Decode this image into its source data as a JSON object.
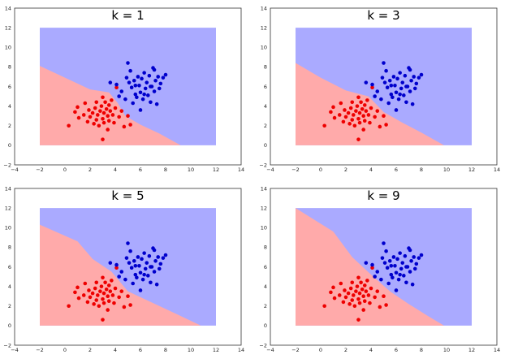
{
  "chart_data": [
    {
      "type": "scatter",
      "title": "k = 1",
      "k": 1,
      "xlim": [
        -4,
        14
      ],
      "ylim": [
        -2,
        14
      ],
      "xticks": [
        -4,
        -2,
        0,
        2,
        4,
        6,
        8,
        10,
        12,
        14
      ],
      "yticks": [
        -2,
        0,
        2,
        4,
        6,
        8,
        10,
        12,
        14
      ],
      "grid": false,
      "background": "decision regions of k-nearest-neighbour classifier (red class / blue class)",
      "boundary": [
        [
          -2,
          8.1
        ],
        [
          0,
          6.9
        ],
        [
          2,
          5.7
        ],
        [
          3.5,
          5.4
        ],
        [
          4.2,
          4.3
        ],
        [
          4.8,
          3.0
        ],
        [
          6,
          2.1
        ],
        [
          7.5,
          1.2
        ],
        [
          9.2,
          0
        ]
      ],
      "series_ref": "shared"
    },
    {
      "type": "scatter",
      "title": "k = 3",
      "k": 3,
      "xlim": [
        -4,
        14
      ],
      "ylim": [
        -2,
        14
      ],
      "xticks": [
        -4,
        -2,
        0,
        2,
        4,
        6,
        8,
        10,
        12,
        14
      ],
      "yticks": [
        -2,
        0,
        2,
        4,
        6,
        8,
        10,
        12,
        14
      ],
      "grid": false,
      "boundary": [
        [
          -2,
          8.4
        ],
        [
          0,
          6.9
        ],
        [
          2,
          5.6
        ],
        [
          3.8,
          5.0
        ],
        [
          5,
          3.4
        ],
        [
          6.5,
          2.3
        ],
        [
          8,
          1.3
        ],
        [
          9.8,
          0
        ]
      ],
      "series_ref": "shared"
    },
    {
      "type": "scatter",
      "title": "k = 5",
      "k": 5,
      "xlim": [
        -4,
        14
      ],
      "ylim": [
        -2,
        14
      ],
      "xticks": [
        -4,
        -2,
        0,
        2,
        4,
        6,
        8,
        10,
        12,
        14
      ],
      "yticks": [
        -2,
        0,
        2,
        4,
        6,
        8,
        10,
        12,
        14
      ],
      "grid": false,
      "boundary": [
        [
          -2,
          10.3
        ],
        [
          1,
          8.6
        ],
        [
          2.2,
          6.8
        ],
        [
          3.7,
          5.5
        ],
        [
          5,
          3.5
        ],
        [
          7,
          2.3
        ],
        [
          9,
          1.1
        ],
        [
          10.8,
          0
        ]
      ],
      "series_ref": "shared"
    },
    {
      "type": "scatter",
      "title": "k = 9",
      "k": 9,
      "xlim": [
        -4,
        14
      ],
      "ylim": [
        -2,
        14
      ],
      "xticks": [
        -4,
        -2,
        0,
        2,
        4,
        6,
        8,
        10,
        12,
        14
      ],
      "yticks": [
        -2,
        0,
        2,
        4,
        6,
        8,
        10,
        12,
        14
      ],
      "grid": false,
      "boundary": [
        [
          -2,
          12
        ],
        [
          1,
          9.6
        ],
        [
          2.5,
          7.0
        ],
        [
          4,
          5.2
        ],
        [
          5.5,
          3.5
        ],
        [
          7,
          2.2
        ],
        [
          8.5,
          1.0
        ],
        [
          9.8,
          0
        ]
      ],
      "series_ref": "shared"
    }
  ],
  "region_extent": {
    "x": [
      -2,
      12
    ],
    "y": [
      0,
      12
    ]
  },
  "colors": {
    "red_region": "#ffaaaa",
    "blue_region": "#aaaaff",
    "red_points": "#ee0000",
    "blue_points": "#0000cc"
  },
  "series": [
    {
      "color": "red",
      "points": [
        [
          0.3,
          2.0
        ],
        [
          0.8,
          3.4
        ],
        [
          1.0,
          3.9
        ],
        [
          1.1,
          2.8
        ],
        [
          1.5,
          3.1
        ],
        [
          1.6,
          4.3
        ],
        [
          1.8,
          2.4
        ],
        [
          1.9,
          3.6
        ],
        [
          2.0,
          2.9
        ],
        [
          2.2,
          3.3
        ],
        [
          2.3,
          2.2
        ],
        [
          2.4,
          3.8
        ],
        [
          2.5,
          2.6
        ],
        [
          2.5,
          4.4
        ],
        [
          2.6,
          3.1
        ],
        [
          2.7,
          2.0
        ],
        [
          2.8,
          3.5
        ],
        [
          2.9,
          4.0
        ],
        [
          3.0,
          2.7
        ],
        [
          3.0,
          4.9
        ],
        [
          3.1,
          3.3
        ],
        [
          3.1,
          2.3
        ],
        [
          3.2,
          4.4
        ],
        [
          3.3,
          3.7
        ],
        [
          3.4,
          3.0
        ],
        [
          3.5,
          4.1
        ],
        [
          3.5,
          2.5
        ],
        [
          3.6,
          3.5
        ],
        [
          3.7,
          4.6
        ],
        [
          3.8,
          3.1
        ],
        [
          3.9,
          2.3
        ],
        [
          4.0,
          3.8
        ],
        [
          4.1,
          5.9
        ],
        [
          4.3,
          2.9
        ],
        [
          4.5,
          3.5
        ],
        [
          4.7,
          1.9
        ],
        [
          5.0,
          3.0
        ],
        [
          5.2,
          2.1
        ],
        [
          3.4,
          1.6
        ],
        [
          3.0,
          0.6
        ]
      ]
    },
    {
      "color": "blue",
      "points": [
        [
          3.6,
          6.4
        ],
        [
          4.1,
          6.2
        ],
        [
          4.3,
          5.0
        ],
        [
          4.5,
          5.5
        ],
        [
          4.8,
          4.7
        ],
        [
          4.9,
          6.9
        ],
        [
          5.0,
          8.4
        ],
        [
          5.1,
          6.4
        ],
        [
          5.2,
          7.6
        ],
        [
          5.3,
          5.9
        ],
        [
          5.4,
          4.3
        ],
        [
          5.5,
          6.6
        ],
        [
          5.6,
          5.2
        ],
        [
          5.7,
          4.9
        ],
        [
          5.8,
          7.0
        ],
        [
          5.9,
          6.1
        ],
        [
          6.0,
          5.4
        ],
        [
          6.0,
          3.6
        ],
        [
          6.1,
          6.8
        ],
        [
          6.2,
          4.7
        ],
        [
          6.3,
          7.4
        ],
        [
          6.4,
          5.8
        ],
        [
          6.5,
          6.4
        ],
        [
          6.6,
          5.1
        ],
        [
          6.7,
          7.1
        ],
        [
          6.8,
          4.4
        ],
        [
          6.9,
          6.0
        ],
        [
          7.0,
          7.9
        ],
        [
          7.1,
          5.5
        ],
        [
          7.2,
          6.6
        ],
        [
          7.3,
          4.2
        ],
        [
          7.4,
          7.0
        ],
        [
          7.5,
          5.8
        ],
        [
          7.6,
          6.3
        ],
        [
          7.8,
          6.9
        ],
        [
          8.0,
          7.2
        ],
        [
          6.3,
          5.2
        ],
        [
          5.6,
          6.1
        ],
        [
          6.8,
          6.0
        ],
        [
          7.1,
          7.7
        ]
      ]
    }
  ]
}
